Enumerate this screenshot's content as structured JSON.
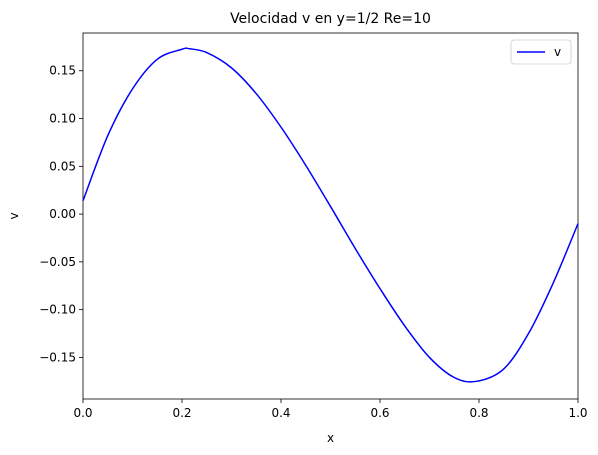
{
  "chart_data": {
    "type": "line",
    "title": "Velocidad v en y=1/2 Re=10",
    "xlabel": "x",
    "ylabel": "v",
    "xlim": [
      0.0,
      1.0
    ],
    "ylim": [
      -0.1935,
      0.1895
    ],
    "grid": false,
    "legend_position": "top-right",
    "x_ticks": [
      0.0,
      0.2,
      0.4,
      0.6,
      0.8,
      1.0
    ],
    "x_tick_labels": [
      "0.0",
      "0.2",
      "0.4",
      "0.6",
      "0.8",
      "1.0"
    ],
    "y_ticks": [
      0.15,
      0.1,
      0.05,
      0.0,
      -0.05,
      -0.1,
      -0.15
    ],
    "y_tick_labels": [
      "0.15",
      "0.10",
      "0.05",
      "0.00",
      "−0.05",
      "−0.10",
      "−0.15"
    ],
    "series": [
      {
        "name": "v",
        "color": "#0000ff",
        "x": [
          0.0,
          0.05,
          0.1,
          0.15,
          0.2,
          0.215,
          0.25,
          0.3,
          0.35,
          0.4,
          0.45,
          0.5,
          0.55,
          0.6,
          0.65,
          0.7,
          0.75,
          0.795,
          0.85,
          0.9,
          0.95,
          1.0
        ],
        "y": [
          0.014,
          0.082,
          0.131,
          0.162,
          0.1725,
          0.173,
          0.169,
          0.153,
          0.126,
          0.091,
          0.051,
          0.008,
          -0.036,
          -0.078,
          -0.117,
          -0.15,
          -0.171,
          -0.175,
          -0.162,
          -0.125,
          -0.072,
          -0.01
        ]
      }
    ]
  }
}
